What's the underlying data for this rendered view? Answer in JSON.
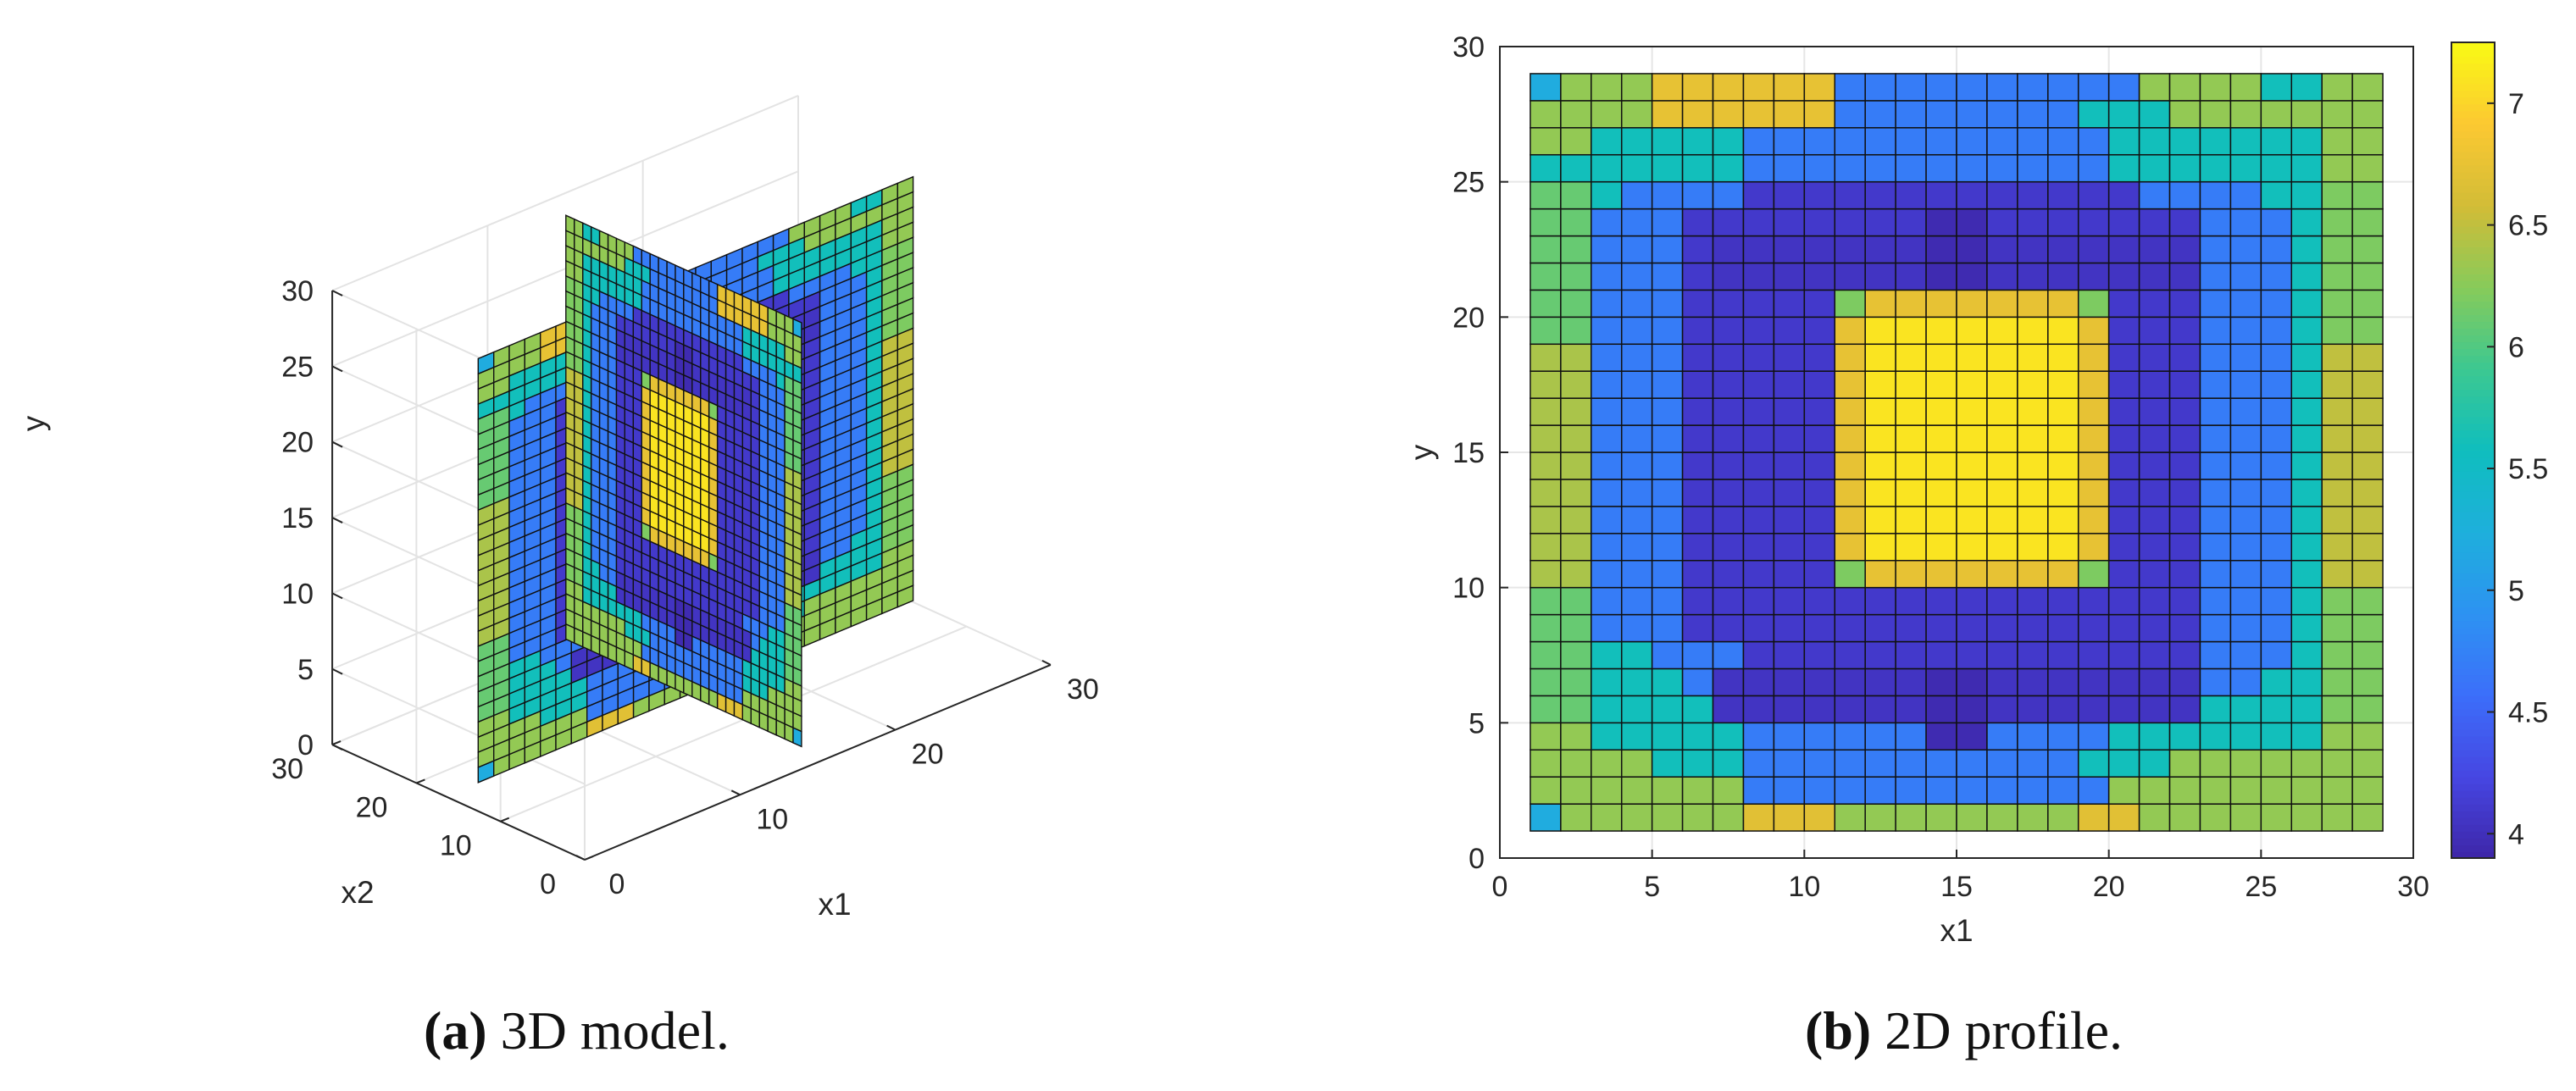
{
  "captions": {
    "a_label": "(a)",
    "a_text": "3D model.",
    "b_label": "(b)",
    "b_text": "2D profile."
  },
  "chart_data": [
    {
      "type": "surface3d",
      "panel": "a",
      "xlabel": "x1",
      "ylabel": "x2",
      "zlabel": "y",
      "x_ticks": [
        0,
        10,
        20,
        30
      ],
      "y_ticks": [
        0,
        10,
        20,
        30
      ],
      "z_ticks": [
        0,
        5,
        10,
        15,
        20,
        25,
        30
      ],
      "xlim": [
        0,
        30
      ],
      "ylim": [
        0,
        30
      ],
      "zlim": [
        0,
        30
      ],
      "grid": true,
      "slices": [
        {
          "plane": "x1",
          "at": 14.5,
          "range": [
            1,
            28
          ]
        },
        {
          "plane": "x2",
          "at": 14.5,
          "range": [
            1,
            28
          ]
        }
      ],
      "value_source": "same 28x28 field as panel b"
    },
    {
      "type": "heatmap",
      "panel": "b",
      "xlabel": "x1",
      "ylabel": "y",
      "xlim": [
        0,
        30
      ],
      "ylim": [
        0,
        30
      ],
      "x_ticks": [
        0,
        5,
        10,
        15,
        20,
        25,
        30
      ],
      "y_ticks": [
        0,
        5,
        10,
        15,
        20,
        25,
        30
      ],
      "cell_range": [
        1,
        28
      ],
      "colorbar": {
        "min": 3.9,
        "max": 7.25,
        "ticks": [
          4,
          4.5,
          5,
          5.5,
          6,
          6.5,
          7
        ],
        "placement": "right"
      },
      "grid": true,
      "rows": [
        "SMMMMMSSLLLLLLLLLLLLMMMMSSMM",
        "MMMMSSSLLLLLLLLLLLSSSMMMMMMM",
        "MMSSSSSLLLLLLLLLLLLSSSSSSSMM",
        "SSSSSSSLLLLLLLLLLLLSSSSSSSMM",
        "SSSLLLLWWWWWWWWWWWWWLLLLSSSS",
        "SSLLLWWWWWWWWWWWWWWWWWLLLSSS",
        "SSLLLWWWWWWWWWWWWWWWWWLLLSSS",
        "SSLLLWWWWWWWWWWWWWWWWWLLLSSS",
        "SSLLLWWWWWWWWWWWWWWWWWLLLSSS",
        "SSLLLWWWWWWWWWWWWWWWWWLLLSSS",
        "SSLLLWWWWWWWWWWWWWWWWWLLLSSS",
        "SSLLLWWWWWWWWWWWWWWWWWLLLSSS",
        "SSLLLWWWWWWWWWWWWWWWWWLLLSSS",
        "SSLLLWWWWWWWWWWWWWWWWWLLLSSS",
        "SSLLLWWWWWWWWWWWWWWWWWLLLSSS",
        "SSLLLWWWWWWWWWWWWWWWWWLLLSSS",
        "SSLLLWWWWWWWWWWWWWWWWWLLLSSS",
        "SSLLLWWWWWWWWWWWWWWWWWLLLSSS",
        "SSLLLWWWWWWWWWWWWWWWWWLLLSSS",
        "SSLLLWWWWWWWWWWWWWWWWWLLLSSS",
        "SSLLLWWWWWWWWWWWWWWWWWLLLSSS",
        "SSSSLLLWWWWWWWWWWWWWWWLLLSSS",
        "SSSSSLLLLLLLLLLLLLLLLLLLSSSS",
        "SSSSSSSLLLLLLLLLLLLLSSSSSSMM",
        "MMSSSSSLLLLLLLLLLLLSSSSSSSMM",
        "MMMMSSSLLLLLLLLLLLSSSMMMMMMM",
        "MMMMMMMLLLLLLLLLLLLMMMMMMMMM",
        "MMMMMMMMMMMMMMMMMMMMMMMMMMMM"
      ],
      "colormap": "parula"
    }
  ]
}
